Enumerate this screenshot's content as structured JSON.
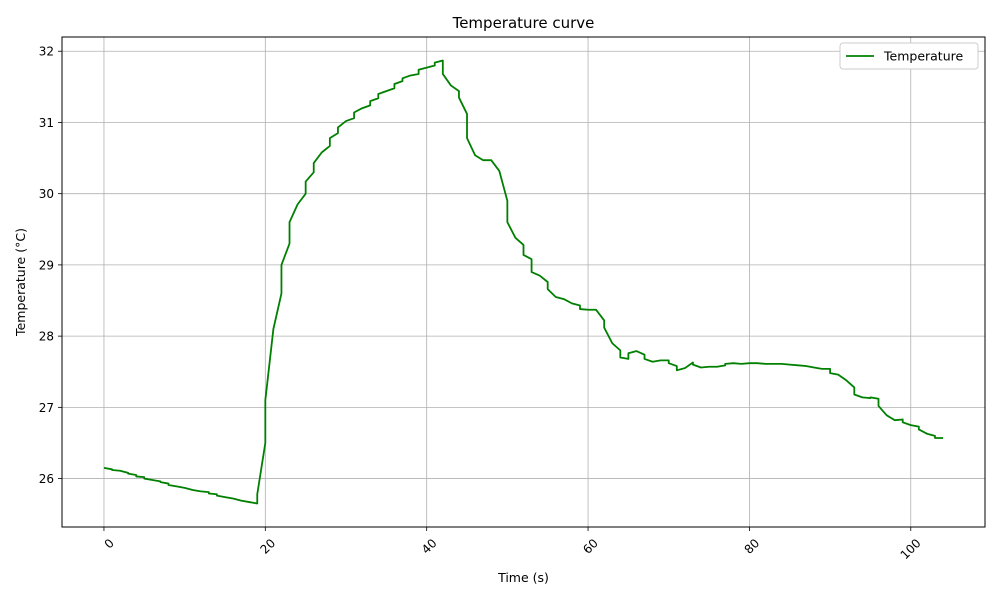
{
  "chart_data": {
    "type": "line",
    "title": "Temperature curve",
    "xlabel": "Time (s)",
    "ylabel": "Temperature (°C)",
    "xlim": [
      -5.2,
      109.2
    ],
    "ylim": [
      25.32,
      32.2
    ],
    "x_ticks": [
      0,
      20,
      40,
      60,
      80,
      100
    ],
    "y_ticks": [
      26,
      27,
      28,
      29,
      30,
      31,
      32
    ],
    "grid": true,
    "legend_position": "top-right",
    "series": [
      {
        "name": "Temperature",
        "color": "#008000",
        "points": [
          [
            0,
            26.15
          ],
          [
            1,
            26.13
          ],
          [
            1,
            26.12
          ],
          [
            2,
            26.11
          ],
          [
            3,
            26.08
          ],
          [
            3,
            26.07
          ],
          [
            4,
            26.05
          ],
          [
            4,
            26.03
          ],
          [
            5,
            26.02
          ],
          [
            5,
            26.0
          ],
          [
            6,
            25.98
          ],
          [
            7,
            25.96
          ],
          [
            7,
            25.95
          ],
          [
            8,
            25.93
          ],
          [
            8,
            25.91
          ],
          [
            9,
            25.89
          ],
          [
            10,
            25.87
          ],
          [
            11,
            25.84
          ],
          [
            12,
            25.82
          ],
          [
            13,
            25.81
          ],
          [
            13,
            25.79
          ],
          [
            14,
            25.78
          ],
          [
            14,
            25.76
          ],
          [
            15,
            25.74
          ],
          [
            16,
            25.72
          ],
          [
            17,
            25.69
          ],
          [
            18,
            25.67
          ],
          [
            18.5,
            25.66
          ],
          [
            19,
            25.65
          ],
          [
            19,
            25.78
          ],
          [
            20,
            26.5
          ],
          [
            20,
            27.1
          ],
          [
            21,
            28.1
          ],
          [
            22,
            28.6
          ],
          [
            22,
            29.0
          ],
          [
            23,
            29.3
          ],
          [
            23,
            29.6
          ],
          [
            24,
            29.85
          ],
          [
            25,
            30.0
          ],
          [
            25,
            30.17
          ],
          [
            26,
            30.3
          ],
          [
            26,
            30.43
          ],
          [
            27,
            30.58
          ],
          [
            28,
            30.67
          ],
          [
            28,
            30.78
          ],
          [
            29,
            30.85
          ],
          [
            29,
            30.93
          ],
          [
            30,
            31.02
          ],
          [
            31,
            31.06
          ],
          [
            31,
            31.14
          ],
          [
            32,
            31.2
          ],
          [
            33,
            31.24
          ],
          [
            33,
            31.3
          ],
          [
            34,
            31.34
          ],
          [
            34,
            31.4
          ],
          [
            35,
            31.44
          ],
          [
            36,
            31.48
          ],
          [
            36,
            31.54
          ],
          [
            37,
            31.58
          ],
          [
            37,
            31.62
          ],
          [
            38,
            31.66
          ],
          [
            39,
            31.68
          ],
          [
            39,
            31.74
          ],
          [
            40,
            31.77
          ],
          [
            41,
            31.8
          ],
          [
            41,
            31.84
          ],
          [
            42,
            31.87
          ],
          [
            42,
            31.68
          ],
          [
            43,
            31.52
          ],
          [
            44,
            31.44
          ],
          [
            44,
            31.35
          ],
          [
            45,
            31.12
          ],
          [
            45,
            30.78
          ],
          [
            46,
            30.54
          ],
          [
            47,
            30.47
          ],
          [
            48,
            30.47
          ],
          [
            49,
            30.32
          ],
          [
            50,
            29.9
          ],
          [
            50,
            29.6
          ],
          [
            51,
            29.38
          ],
          [
            52,
            29.28
          ],
          [
            52,
            29.14
          ],
          [
            53,
            29.08
          ],
          [
            53,
            28.9
          ],
          [
            54,
            28.85
          ],
          [
            55,
            28.76
          ],
          [
            55,
            28.66
          ],
          [
            56,
            28.55
          ],
          [
            57,
            28.52
          ],
          [
            58,
            28.46
          ],
          [
            59,
            28.43
          ],
          [
            59,
            28.38
          ],
          [
            60,
            28.37
          ],
          [
            61,
            28.37
          ],
          [
            62,
            28.22
          ],
          [
            62,
            28.12
          ],
          [
            63,
            27.9
          ],
          [
            64,
            27.8
          ],
          [
            64,
            27.7
          ],
          [
            65,
            27.68
          ],
          [
            65,
            27.76
          ],
          [
            66,
            27.79
          ],
          [
            67,
            27.74
          ],
          [
            67,
            27.68
          ],
          [
            68,
            27.64
          ],
          [
            69,
            27.66
          ],
          [
            70,
            27.66
          ],
          [
            70,
            27.62
          ],
          [
            71,
            27.58
          ],
          [
            71,
            27.52
          ],
          [
            72,
            27.55
          ],
          [
            73,
            27.63
          ],
          [
            73,
            27.6
          ],
          [
            74,
            27.56
          ],
          [
            75,
            27.57
          ],
          [
            76,
            27.57
          ],
          [
            77,
            27.59
          ],
          [
            77,
            27.61
          ],
          [
            78,
            27.62
          ],
          [
            79,
            27.61
          ],
          [
            80,
            27.62
          ],
          [
            81,
            27.62
          ],
          [
            82,
            27.61
          ],
          [
            83,
            27.61
          ],
          [
            84,
            27.61
          ],
          [
            85,
            27.6
          ],
          [
            86,
            27.59
          ],
          [
            87,
            27.58
          ],
          [
            88,
            27.56
          ],
          [
            89,
            27.54
          ],
          [
            90,
            27.54
          ],
          [
            90,
            27.48
          ],
          [
            91,
            27.46
          ],
          [
            92,
            27.38
          ],
          [
            93,
            27.28
          ],
          [
            93,
            27.18
          ],
          [
            94,
            27.14
          ],
          [
            95,
            27.13
          ],
          [
            95,
            27.14
          ],
          [
            96,
            27.12
          ],
          [
            96,
            27.02
          ],
          [
            97,
            26.89
          ],
          [
            98,
            26.82
          ],
          [
            99,
            26.83
          ],
          [
            99,
            26.79
          ],
          [
            100,
            26.75
          ],
          [
            101,
            26.73
          ],
          [
            101,
            26.69
          ],
          [
            102,
            26.63
          ],
          [
            103,
            26.6
          ],
          [
            103,
            26.57
          ],
          [
            104,
            26.57
          ]
        ]
      }
    ]
  }
}
